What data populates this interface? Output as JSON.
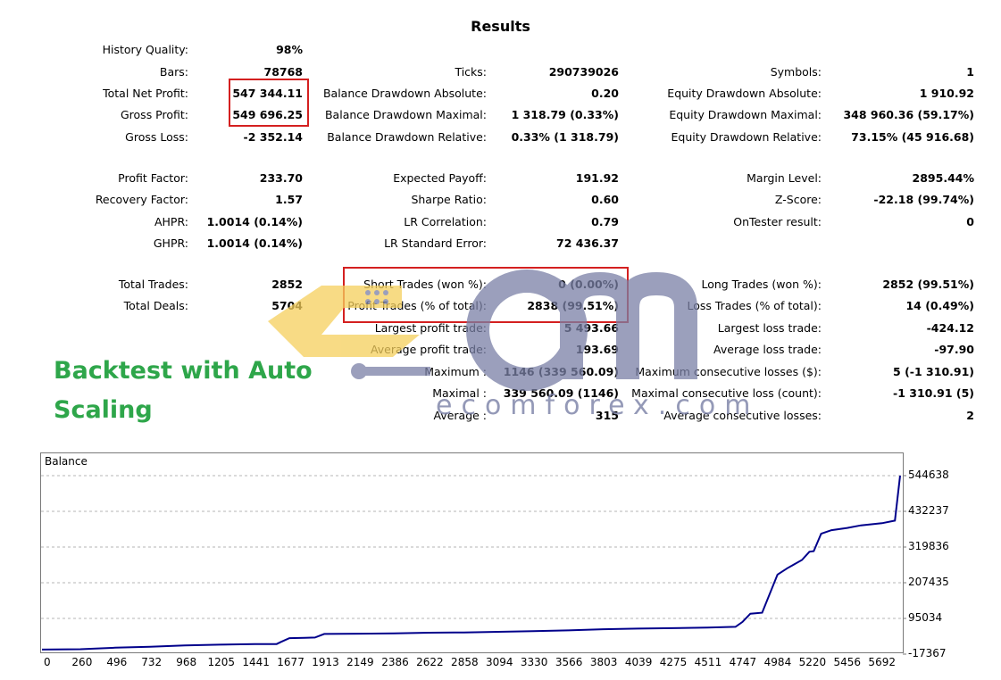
{
  "report": {
    "title": "Results",
    "col1": [
      {
        "label": "History Quality:",
        "value": "98%"
      },
      {
        "label": "Bars:",
        "value": "78768"
      },
      {
        "label": "Total Net Profit:",
        "value": "547 344.11"
      },
      {
        "label": "Gross Profit:",
        "value": "549 696.25"
      },
      {
        "label": "Gross Loss:",
        "value": "-2 352.14"
      },
      {
        "label": "Profit Factor:",
        "value": "233.70"
      },
      {
        "label": "Recovery Factor:",
        "value": "1.57"
      },
      {
        "label": "AHPR:",
        "value": "1.0014 (0.14%)"
      },
      {
        "label": "GHPR:",
        "value": "1.0014 (0.14%)"
      },
      {
        "label": "Total Trades:",
        "value": "2852"
      },
      {
        "label": "Total Deals:",
        "value": "5704"
      }
    ],
    "col2": [
      {
        "label": "Ticks:",
        "value": "290739026"
      },
      {
        "label": "Balance Drawdown Absolute:",
        "value": "0.20"
      },
      {
        "label": "Balance Drawdown Maximal:",
        "value": "1 318.79 (0.33%)"
      },
      {
        "label": "Balance Drawdown Relative:",
        "value": "0.33% (1 318.79)"
      },
      {
        "label": "Expected Payoff:",
        "value": "191.92"
      },
      {
        "label": "Sharpe Ratio:",
        "value": "0.60"
      },
      {
        "label": "LR Correlation:",
        "value": "0.79"
      },
      {
        "label": "LR Standard Error:",
        "value": "72 436.37"
      },
      {
        "label": "Short Trades (won %):",
        "value": "0 (0.00%)"
      },
      {
        "label": "Profit Trades (% of total):",
        "value": "2838 (99.51%)"
      },
      {
        "label": "Largest profit trade:",
        "value": "5 493.66"
      },
      {
        "label": "Average profit trade:",
        "value": "193.69"
      },
      {
        "label": "Maximum :",
        "value": "1146 (339 560.09)"
      },
      {
        "label": "Maximal :",
        "value": "339 560.09 (1146)"
      },
      {
        "label": "Average :",
        "value": "315"
      }
    ],
    "col3": [
      {
        "label": "Symbols:",
        "value": "1"
      },
      {
        "label": "Equity Drawdown Absolute:",
        "value": "1 910.92"
      },
      {
        "label": "Equity Drawdown Maximal:",
        "value": "348 960.36 (59.17%)"
      },
      {
        "label": "Equity Drawdown Relative:",
        "value": "73.15% (45 916.68)"
      },
      {
        "label": "Margin Level:",
        "value": "2895.44%"
      },
      {
        "label": "Z-Score:",
        "value": "-22.18 (99.74%)"
      },
      {
        "label": "OnTester result:",
        "value": "0"
      },
      {
        "label": "Long Trades (won %):",
        "value": "2852 (99.51%)"
      },
      {
        "label": "Loss Trades (% of total):",
        "value": "14 (0.49%)"
      },
      {
        "label": "Largest loss trade:",
        "value": "-424.12"
      },
      {
        "label": "Average loss trade:",
        "value": "-97.90"
      },
      {
        "label": "Maximum consecutive losses ($):",
        "value": "5 (-1 310.91)"
      },
      {
        "label": "Maximal consecutive loss (count):",
        "value": "-1 310.91 (5)"
      },
      {
        "label": "Average consecutive losses:",
        "value": "2"
      }
    ]
  },
  "promo": {
    "line1": "Backtest with Auto",
    "line2": "Scaling"
  },
  "watermark": {
    "text": "ecomforex.com"
  },
  "colors": {
    "highlight_box": "#d42020",
    "promo_text": "#2ea64a",
    "balance_line": "#00008b",
    "watermark_gray": "#7a80a6",
    "watermark_yellow": "#f5cf5c"
  },
  "chart_data": {
    "type": "line",
    "title": "Balance",
    "series": [
      {
        "name": "Balance",
        "x": [
          0,
          260,
          496,
          732,
          968,
          1205,
          1441,
          1590,
          1620,
          1677,
          1780,
          1850,
          1913,
          2149,
          2386,
          2622,
          2858,
          3094,
          3330,
          3566,
          3803,
          4039,
          4275,
          4511,
          4700,
          4747,
          4800,
          4880,
          4984,
          5050,
          5150,
          5200,
          5230,
          5280,
          5350,
          5456,
          5550,
          5692,
          5780,
          5815
        ],
        "y": [
          -3000,
          -2000,
          3000,
          6000,
          10000,
          12500,
          14000,
          14500,
          21000,
          33000,
          34000,
          35000,
          46000,
          47000,
          48000,
          50000,
          51000,
          53000,
          55000,
          57500,
          61000,
          63000,
          64500,
          66000,
          68500,
          84000,
          110000,
          113000,
          233000,
          253000,
          279000,
          305000,
          307000,
          362000,
          373000,
          380000,
          388000,
          395000,
          403000,
          544638
        ]
      }
    ],
    "ylim": [
      -17367,
      544638
    ],
    "yticks": [
      "544638",
      "432237",
      "319836",
      "207435",
      "95034",
      "-17367"
    ],
    "xticks": [
      "0",
      "260",
      "496",
      "732",
      "968",
      "1205",
      "1441",
      "1677",
      "1913",
      "2149",
      "2386",
      "2622",
      "2858",
      "3094",
      "3330",
      "3566",
      "3803",
      "4039",
      "4275",
      "4511",
      "4747",
      "4984",
      "5220",
      "5456",
      "5692"
    ],
    "xlim": [
      0,
      5815
    ],
    "grid": true
  }
}
